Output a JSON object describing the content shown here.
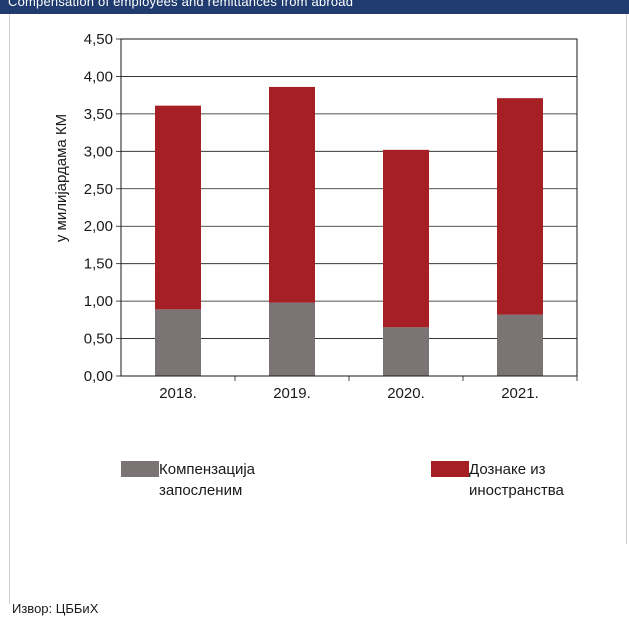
{
  "header": {
    "text": "Compensation of employees and remittances from abroad",
    "color": "#1f3b6f"
  },
  "source": "Извор: ЦББиХ",
  "chart_data": {
    "type": "bar",
    "stacked": true,
    "categories": [
      "2018.",
      "2019.",
      "2020.",
      "2021."
    ],
    "series": [
      {
        "name": "Компензација запосленим",
        "values": [
          0.89,
          0.98,
          0.65,
          0.82
        ],
        "color": "#7a7574"
      },
      {
        "name": "Дознаке из иностранства",
        "values": [
          2.72,
          2.88,
          2.37,
          2.89
        ],
        "color": "#a51f24"
      }
    ],
    "ylabel": "у милијардама КМ",
    "ylim": [
      0,
      4.5
    ],
    "yticks": [
      "0,00",
      "0,50",
      "1,00",
      "1,50",
      "2,00",
      "2,50",
      "3,00",
      "3,50",
      "4,00",
      "4,50"
    ],
    "grid": true,
    "legend_position": "bottom"
  }
}
